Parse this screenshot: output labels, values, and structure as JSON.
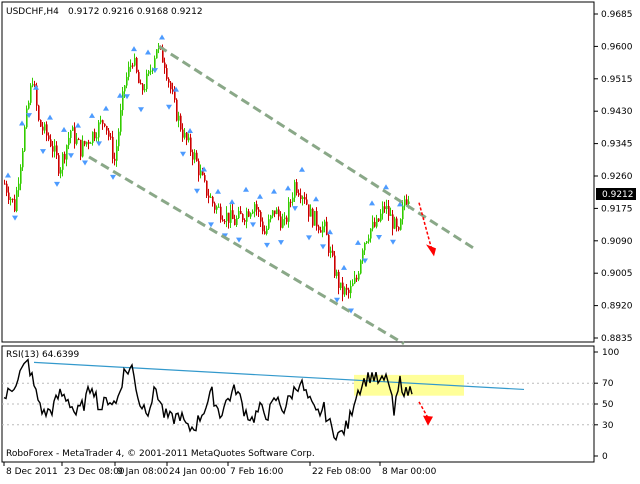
{
  "header": {
    "symbol_tf": "USDCHF,H4",
    "ohlc": "0.9172 0.9216 0.9168 0.9212"
  },
  "price_axis": {
    "ticks": [
      "0.9685",
      "0.9600",
      "0.9515",
      "0.9430",
      "0.9345",
      "0.9260",
      "0.9175",
      "0.9090",
      "0.9005",
      "0.8920",
      "0.8835"
    ],
    "current_label": "0.9212"
  },
  "rsi_panel": {
    "title": "RSI(13) 64.6399",
    "ticks": [
      "100",
      "70",
      "50",
      "30",
      "0"
    ]
  },
  "footer": {
    "copyright": "RoboForex - MetaTrader 4, © 2001-2011 MetaQuotes Software Corp."
  },
  "time_axis": {
    "labels": [
      "8 Dec 2011",
      "23 Dec 08:00",
      "9 Jan 08:00",
      "24 Jan 00:00",
      "7 Feb 16:00",
      "22 Feb 08:00",
      "8 Mar 00:00"
    ]
  },
  "colors": {
    "bull": "#33cc00",
    "bear": "#cc0000",
    "fractal": "#4d9bff",
    "channel": "#8aa888",
    "trendline": "#3399cc",
    "highlight": "#ffff99",
    "forecast": "#ff0000"
  },
  "chart_data": [
    {
      "type": "candlestick",
      "symbol": "USDCHF",
      "timeframe": "H4",
      "ylim": [
        0.8835,
        0.9685
      ],
      "close_trace": [
        [
          0,
          0.924
        ],
        [
          10,
          0.918
        ],
        [
          20,
          0.938
        ],
        [
          28,
          0.952
        ],
        [
          34,
          0.94
        ],
        [
          46,
          0.935
        ],
        [
          55,
          0.928
        ],
        [
          66,
          0.938
        ],
        [
          76,
          0.933
        ],
        [
          88,
          0.937
        ],
        [
          100,
          0.941
        ],
        [
          110,
          0.93
        ],
        [
          120,
          0.95
        ],
        [
          128,
          0.957
        ],
        [
          136,
          0.948
        ],
        [
          144,
          0.952
        ],
        [
          152,
          0.96
        ],
        [
          160,
          0.956
        ],
        [
          170,
          0.944
        ],
        [
          180,
          0.936
        ],
        [
          190,
          0.931
        ],
        [
          200,
          0.923
        ],
        [
          210,
          0.918
        ],
        [
          220,
          0.916
        ],
        [
          230,
          0.914
        ],
        [
          240,
          0.916
        ],
        [
          250,
          0.919
        ],
        [
          260,
          0.911
        ],
        [
          270,
          0.917
        ],
        [
          280,
          0.913
        ],
        [
          290,
          0.924
        ],
        [
          300,
          0.921
        ],
        [
          305,
          0.916
        ],
        [
          312,
          0.914
        ],
        [
          320,
          0.912
        ],
        [
          328,
          0.903
        ],
        [
          336,
          0.896
        ],
        [
          344,
          0.895
        ],
        [
          352,
          0.899
        ],
        [
          358,
          0.908
        ],
        [
          365,
          0.912
        ],
        [
          372,
          0.913
        ],
        [
          380,
          0.918
        ],
        [
          388,
          0.914
        ],
        [
          394,
          0.91
        ],
        [
          400,
          0.92
        ],
        [
          405,
          0.9212
        ]
      ],
      "channel_upper": [
        [
          155,
          0.96
        ],
        [
          470,
          0.907
        ]
      ],
      "channel_lower": [
        [
          85,
          0.931
        ],
        [
          400,
          0.882
        ]
      ],
      "forecast_arrow": [
        [
          415,
          0.919
        ],
        [
          428,
          0.9065
        ]
      ]
    },
    {
      "type": "line",
      "name": "RSI(13)",
      "ylim": [
        0,
        100
      ],
      "last_value": 64.6399,
      "values_trace": [
        [
          0,
          55
        ],
        [
          8,
          65
        ],
        [
          16,
          80
        ],
        [
          24,
          90
        ],
        [
          32,
          60
        ],
        [
          40,
          40
        ],
        [
          48,
          45
        ],
        [
          56,
          60
        ],
        [
          64,
          55
        ],
        [
          72,
          40
        ],
        [
          80,
          50
        ],
        [
          88,
          70
        ],
        [
          96,
          45
        ],
        [
          104,
          55
        ],
        [
          112,
          50
        ],
        [
          120,
          80
        ],
        [
          128,
          85
        ],
        [
          136,
          50
        ],
        [
          144,
          45
        ],
        [
          152,
          65
        ],
        [
          160,
          40
        ],
        [
          168,
          35
        ],
        [
          176,
          40
        ],
        [
          184,
          25
        ],
        [
          192,
          30
        ],
        [
          200,
          45
        ],
        [
          208,
          60
        ],
        [
          216,
          40
        ],
        [
          224,
          55
        ],
        [
          232,
          65
        ],
        [
          240,
          45
        ],
        [
          248,
          35
        ],
        [
          256,
          45
        ],
        [
          264,
          40
        ],
        [
          272,
          55
        ],
        [
          280,
          45
        ],
        [
          288,
          60
        ],
        [
          296,
          72
        ],
        [
          304,
          55
        ],
        [
          312,
          40
        ],
        [
          320,
          45
        ],
        [
          328,
          25
        ],
        [
          336,
          20
        ],
        [
          344,
          30
        ],
        [
          352,
          60
        ],
        [
          360,
          72
        ],
        [
          368,
          78
        ],
        [
          376,
          70
        ],
        [
          384,
          75
        ],
        [
          390,
          40
        ],
        [
          396,
          72
        ],
        [
          402,
          60
        ],
        [
          408,
          65
        ]
      ],
      "trendline": [
        [
          30,
          90
        ],
        [
          520,
          64
        ]
      ],
      "highlight_range": [
        58,
        78
      ],
      "forecast_arrow": [
        [
          415,
          52
        ],
        [
          425,
          35
        ]
      ]
    }
  ]
}
